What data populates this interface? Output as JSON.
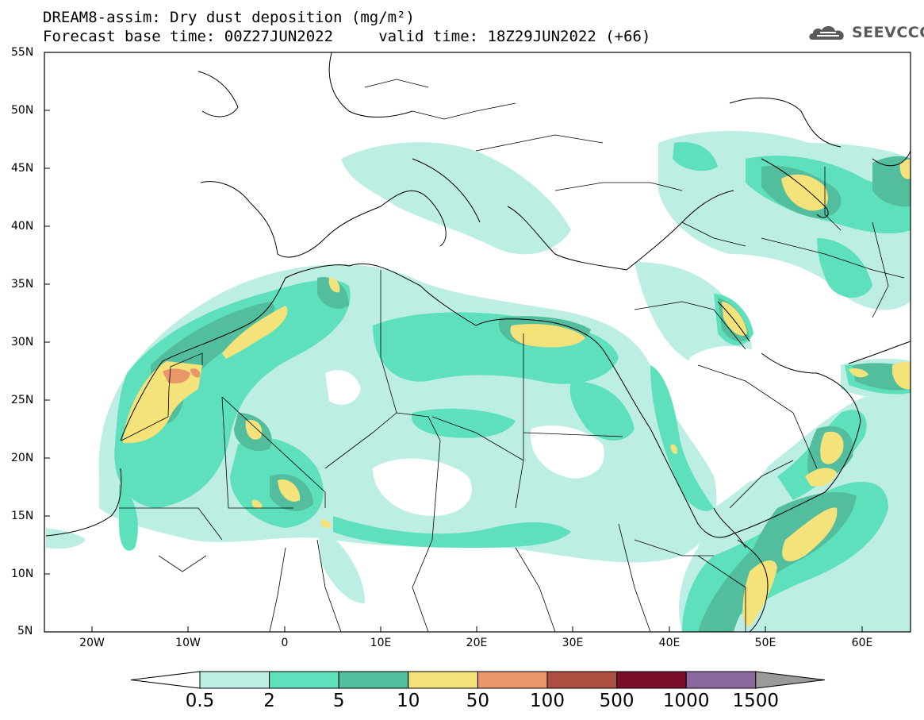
{
  "title": {
    "line1": "DREAM8-assim: Dry dust deposition (mg/m²)",
    "line2": "Forecast base time: 00Z27JUN2022     valid time: 18Z29JUN2022 (+66)"
  },
  "logo": {
    "text": "SEEVCCC",
    "icon": "cloud-icon"
  },
  "map": {
    "lat_labels": [
      "55N",
      "50N",
      "45N",
      "40N",
      "35N",
      "30N",
      "25N",
      "20N",
      "15N",
      "10N",
      "5N"
    ],
    "lon_labels": [
      "20W",
      "10W",
      "0",
      "10E",
      "20E",
      "30E",
      "40E",
      "50E",
      "60E"
    ],
    "extent": {
      "lon": [
        -25,
        65
      ],
      "lat": [
        5,
        55
      ]
    }
  },
  "legend": {
    "labels": [
      "0.5",
      "2",
      "5",
      "10",
      "50",
      "100",
      "500",
      "1000",
      "1500"
    ],
    "colors": [
      "#bdeee4",
      "#5ee0bd",
      "#52be9d",
      "#f4e27a",
      "#e8966a",
      "#ad4f40",
      "#7a0d2a",
      "#8a6a9e"
    ],
    "under_color": "#ffffff",
    "over_color": "#9a9a9a"
  }
}
